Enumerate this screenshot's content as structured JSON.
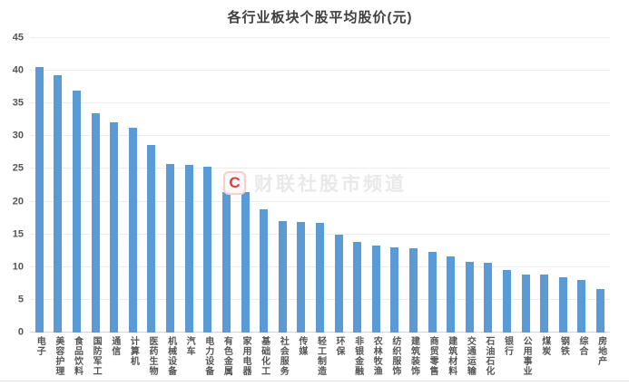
{
  "watermark": {
    "logo_letter": "C",
    "text": "财联社股市频道"
  },
  "colors": {
    "bar": "#5B9BD5",
    "gridline": "#EBEBEB",
    "axis_line": "#D6D6D6",
    "title_text": "#3F3F3F",
    "axis_text": "#555555",
    "watermark_text": "#E9E9E9",
    "watermark_red": "#E23B3B",
    "watermark_border": "#F6CFCF",
    "watermark_bg": "#FEF8F8",
    "bottom_border": "#DCE1E7"
  },
  "chart_data": {
    "type": "bar",
    "title": "各行业板块个股平均股价(元)",
    "xlabel": "",
    "ylabel": "",
    "unit": "元",
    "categories": [
      "电子",
      "美容护理",
      "食品饮料",
      "国防军工",
      "通信",
      "计算机",
      "医药生物",
      "机械设备",
      "汽车",
      "电力设备",
      "有色金属",
      "家用电器",
      "基础化工",
      "社会服务",
      "传媒",
      "轻工制造",
      "环保",
      "非银金融",
      "农林牧渔",
      "纺织服饰",
      "建筑装饰",
      "商贸零售",
      "建筑材料",
      "交通运输",
      "石油石化",
      "银行",
      "公用事业",
      "煤炭",
      "钢铁",
      "综合",
      "房地产"
    ],
    "values": [
      40.6,
      39.3,
      37.0,
      33.5,
      32.1,
      31.3,
      28.7,
      25.7,
      25.6,
      25.3,
      21.5,
      21.4,
      18.8,
      17.0,
      16.9,
      16.7,
      14.9,
      13.9,
      13.3,
      13.0,
      12.9,
      12.3,
      11.7,
      10.8,
      10.7,
      9.6,
      8.8,
      8.8,
      8.4,
      8.1,
      6.7
    ],
    "ylim": [
      0,
      45
    ],
    "ytick_step": 5,
    "yticks": [
      0,
      5,
      10,
      15,
      20,
      25,
      30,
      35,
      40,
      45
    ],
    "grid": true,
    "legend": "none",
    "bar_label_orientation": "vertical"
  }
}
